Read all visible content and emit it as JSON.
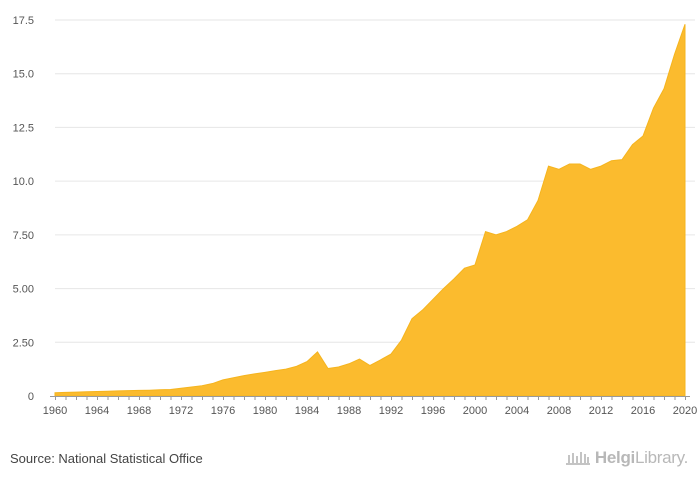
{
  "chart_data": {
    "type": "area",
    "title": "",
    "xlabel": "",
    "ylabel": "",
    "color": "#FBBB2E",
    "grid": true,
    "ylim": [
      0,
      17.5
    ],
    "xlim": [
      1960,
      2020
    ],
    "y_ticks": [
      "0",
      "2.50",
      "5.00",
      "7.50",
      "10.0",
      "12.5",
      "15.0",
      "17.5"
    ],
    "x_ticks": [
      "1960",
      "1964",
      "1968",
      "1972",
      "1976",
      "1980",
      "1984",
      "1988",
      "1992",
      "1996",
      "2000",
      "2004",
      "2008",
      "2012",
      "2016",
      "2020"
    ],
    "x": [
      1960,
      1961,
      1962,
      1963,
      1964,
      1965,
      1966,
      1967,
      1968,
      1969,
      1970,
      1971,
      1972,
      1973,
      1974,
      1975,
      1976,
      1977,
      1978,
      1979,
      1980,
      1981,
      1982,
      1983,
      1984,
      1985,
      1986,
      1987,
      1988,
      1989,
      1990,
      1991,
      1992,
      1993,
      1994,
      1995,
      1996,
      1997,
      1998,
      1999,
      2000,
      2001,
      2002,
      2003,
      2004,
      2005,
      2006,
      2007,
      2008,
      2009,
      2010,
      2011,
      2012,
      2013,
      2014,
      2015,
      2016,
      2017,
      2018,
      2019,
      2020
    ],
    "values": [
      0.15,
      0.17,
      0.18,
      0.2,
      0.21,
      0.22,
      0.24,
      0.25,
      0.26,
      0.27,
      0.29,
      0.3,
      0.36,
      0.42,
      0.48,
      0.58,
      0.75,
      0.85,
      0.95,
      1.03,
      1.1,
      1.18,
      1.25,
      1.38,
      1.6,
      2.05,
      1.28,
      1.35,
      1.5,
      1.72,
      1.42,
      1.68,
      1.95,
      2.6,
      3.6,
      4.0,
      4.5,
      5.0,
      5.45,
      5.95,
      6.1,
      7.65,
      7.5,
      7.65,
      7.9,
      8.2,
      9.1,
      10.7,
      10.55,
      10.8,
      10.8,
      10.55,
      10.7,
      10.95,
      11.0,
      11.7,
      12.1,
      13.4,
      14.3,
      15.9,
      17.3
    ]
  },
  "footer": {
    "source": "Source: National Statistical Office",
    "logo_bold": "Helgi",
    "logo_light": "Library."
  }
}
